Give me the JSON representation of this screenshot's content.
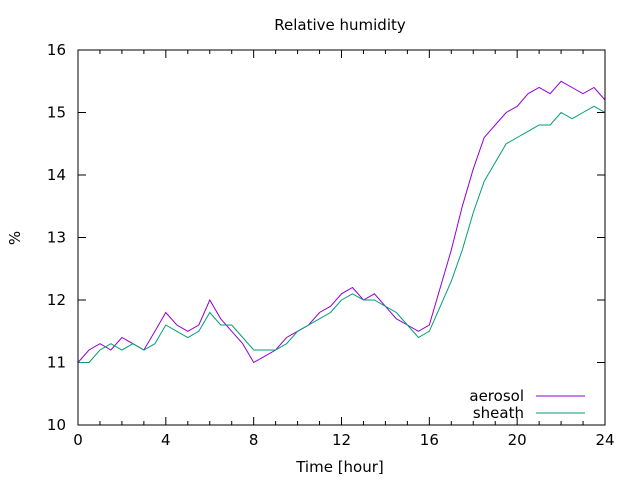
{
  "chart_data": {
    "type": "line",
    "title": "Relative humidity",
    "xlabel": "Time [hour]",
    "ylabel": "%",
    "xlim": [
      0,
      24
    ],
    "ylim": [
      10,
      16
    ],
    "xticks": [
      0,
      4,
      8,
      12,
      16,
      20,
      24
    ],
    "yticks": [
      10,
      11,
      12,
      13,
      14,
      15,
      16
    ],
    "grid": false,
    "legend_position": "bottom-right",
    "series": [
      {
        "name": "aerosol",
        "color": "#9400d3",
        "x": [
          0.0,
          0.5,
          1.0,
          1.5,
          2.0,
          2.5,
          3.0,
          3.5,
          4.0,
          4.5,
          5.0,
          5.5,
          6.0,
          6.5,
          7.0,
          7.5,
          8.0,
          8.5,
          9.0,
          9.5,
          10.0,
          10.5,
          11.0,
          11.5,
          12.0,
          12.5,
          13.0,
          13.5,
          14.0,
          14.5,
          15.0,
          15.5,
          16.0,
          16.5,
          17.0,
          17.5,
          18.0,
          18.5,
          19.0,
          19.5,
          20.0,
          20.5,
          21.0,
          21.5,
          22.0,
          22.5,
          23.0,
          23.5,
          24.0
        ],
        "y": [
          11.0,
          11.2,
          11.3,
          11.2,
          11.4,
          11.3,
          11.2,
          11.5,
          11.8,
          11.6,
          11.5,
          11.6,
          12.0,
          11.7,
          11.5,
          11.3,
          11.0,
          11.1,
          11.2,
          11.4,
          11.5,
          11.6,
          11.8,
          11.9,
          12.1,
          12.2,
          12.0,
          12.1,
          11.9,
          11.7,
          11.6,
          11.5,
          11.6,
          12.2,
          12.8,
          13.5,
          14.1,
          14.6,
          14.8,
          15.0,
          15.1,
          15.3,
          15.4,
          15.3,
          15.5,
          15.4,
          15.3,
          15.4,
          15.2
        ]
      },
      {
        "name": "sheath",
        "color": "#009e73",
        "x": [
          0.0,
          0.5,
          1.0,
          1.5,
          2.0,
          2.5,
          3.0,
          3.5,
          4.0,
          4.5,
          5.0,
          5.5,
          6.0,
          6.5,
          7.0,
          7.5,
          8.0,
          8.5,
          9.0,
          9.5,
          10.0,
          10.5,
          11.0,
          11.5,
          12.0,
          12.5,
          13.0,
          13.5,
          14.0,
          14.5,
          15.0,
          15.5,
          16.0,
          16.5,
          17.0,
          17.5,
          18.0,
          18.5,
          19.0,
          19.5,
          20.0,
          20.5,
          21.0,
          21.5,
          22.0,
          22.5,
          23.0,
          23.5,
          24.0
        ],
        "y": [
          11.0,
          11.0,
          11.2,
          11.3,
          11.2,
          11.3,
          11.2,
          11.3,
          11.6,
          11.5,
          11.4,
          11.5,
          11.8,
          11.6,
          11.6,
          11.4,
          11.2,
          11.2,
          11.2,
          11.3,
          11.5,
          11.6,
          11.7,
          11.8,
          12.0,
          12.1,
          12.0,
          12.0,
          11.9,
          11.8,
          11.6,
          11.4,
          11.5,
          11.9,
          12.3,
          12.8,
          13.4,
          13.9,
          14.2,
          14.5,
          14.6,
          14.7,
          14.8,
          14.8,
          15.0,
          14.9,
          15.0,
          15.1,
          15.0
        ]
      }
    ]
  }
}
